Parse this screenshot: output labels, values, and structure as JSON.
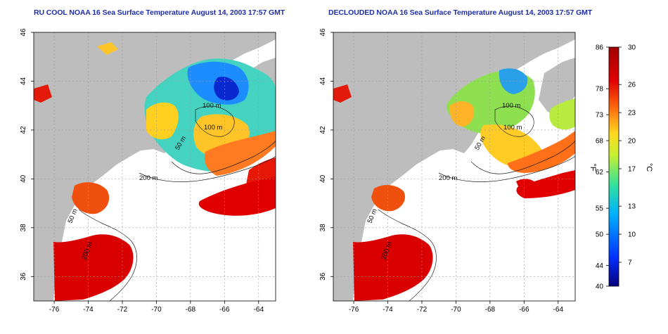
{
  "titles": {
    "left": "RU COOL NOAA 16 Sea Surface Temperature August 14, 2003 17:57 GMT",
    "right": "DECLOUDED NOAA 16 Sea Surface Temperature August 14, 2003 17:57 GMT"
  },
  "axes": {
    "lon_ticks": [
      "-76",
      "-74",
      "-72",
      "-70",
      "-68",
      "-66",
      "-64"
    ],
    "lat_ticks": [
      "46",
      "44",
      "42",
      "40",
      "38",
      "36"
    ],
    "lon_range": [
      -77.2,
      -63
    ],
    "lat_range": [
      35,
      46
    ],
    "grid": "dotted"
  },
  "contour_labels": {
    "left": [
      "100 m",
      "100 m",
      "50 m",
      "200 m",
      "50 m",
      "200 m"
    ],
    "right": [
      "100 m",
      "100 m",
      "50 m",
      "200 m",
      "50 m",
      "200 m"
    ]
  },
  "colorbar": {
    "unit_f": "°F",
    "unit_c": "°C",
    "f_labels": [
      "86",
      "78",
      "73",
      "68",
      "62",
      "55",
      "50",
      "44",
      "40"
    ],
    "c_labels": [
      "30",
      "26",
      "23",
      "20",
      "17",
      "13",
      "10",
      "7"
    ]
  },
  "colors": {
    "land": "#bdbdbd",
    "title": "#1f2ea8",
    "scale": [
      "#08007a",
      "#0030ff",
      "#00b0ff",
      "#30e0a0",
      "#c8f030",
      "#ffd820",
      "#ff7010",
      "#e00000",
      "#a00000"
    ]
  }
}
